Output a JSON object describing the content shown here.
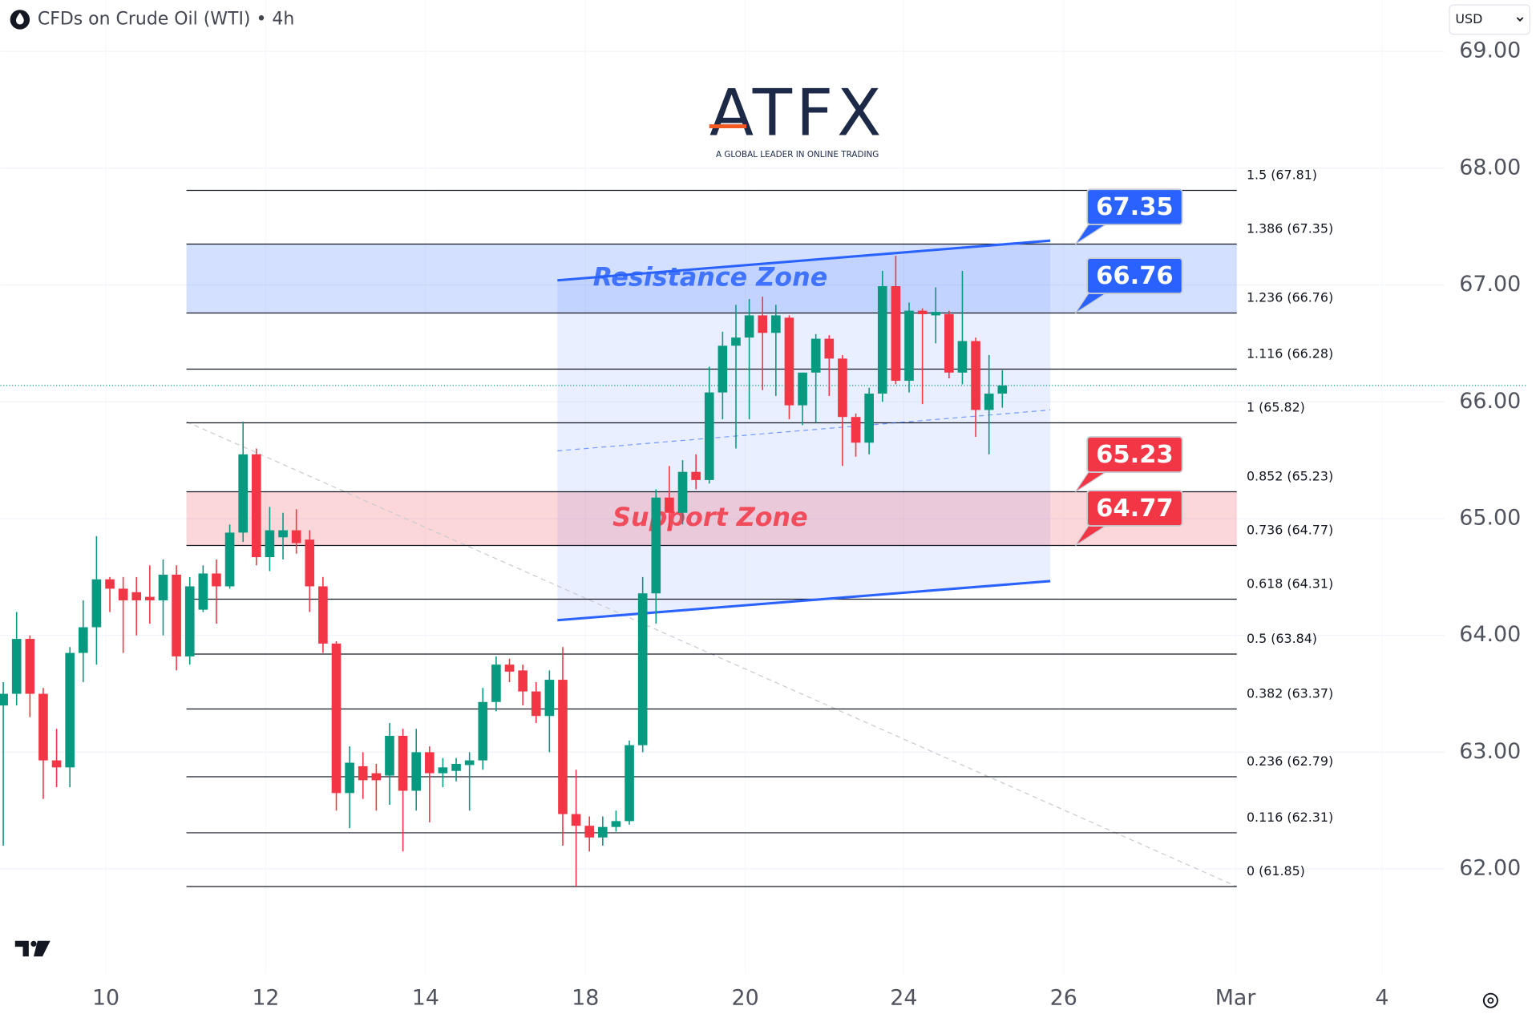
{
  "header": {
    "symbol": "CFDs on Crude Oil (WTI) • 4h",
    "currency": "USD"
  },
  "logo": {
    "name": "ATFX",
    "tagline": "A GLOBAL LEADER IN ONLINE TRADING"
  },
  "chart_data": {
    "type": "candlestick",
    "xlim": [
      -0.22,
      108.2
    ],
    "xticks": [
      {
        "value": 7.7,
        "label": "10"
      },
      {
        "value": 19.7,
        "label": "12"
      },
      {
        "value": 31.7,
        "label": "14"
      },
      {
        "value": 43.7,
        "label": "18"
      },
      {
        "value": 55.7,
        "label": "20"
      },
      {
        "value": 67.6,
        "label": "24"
      },
      {
        "value": 79.6,
        "label": "26"
      },
      {
        "value": 92.5,
        "label": "Mar"
      },
      {
        "value": 103.5,
        "label": "4"
      }
    ],
    "ylim": [
      61.1,
      69.44
    ],
    "yticks": [
      {
        "value": 62,
        "label": "62.00"
      },
      {
        "value": 63,
        "label": "63.00"
      },
      {
        "value": 64,
        "label": "64.00"
      },
      {
        "value": 65,
        "label": "65.00"
      },
      {
        "value": 66,
        "label": "66.00"
      },
      {
        "value": 67,
        "label": "67.00"
      },
      {
        "value": 68,
        "label": "68.00"
      },
      {
        "value": 69,
        "label": "69.00"
      }
    ],
    "grid": true,
    "up_color": "#089981",
    "down_color": "#f23645",
    "x": [
      0,
      1,
      2,
      3,
      4,
      5,
      6,
      7,
      8,
      9,
      10,
      11,
      12,
      13,
      14,
      15,
      16,
      17,
      18,
      19,
      20,
      21,
      22,
      23,
      24,
      25,
      26,
      27,
      28,
      29,
      30,
      31,
      32,
      33,
      34,
      35,
      36,
      37,
      38,
      39,
      40,
      41,
      42,
      43,
      44,
      45,
      46,
      47,
      48,
      49,
      50,
      51,
      52,
      53,
      54,
      55,
      56,
      57,
      58,
      59,
      60,
      61,
      62,
      63,
      64,
      65,
      66,
      67,
      68,
      69,
      70,
      71,
      72,
      73,
      74,
      75
    ],
    "open": [
      63.4,
      63.5,
      63.97,
      63.5,
      62.93,
      62.87,
      63.85,
      64.07,
      64.48,
      64.4,
      64.37,
      64.33,
      64.3,
      64.52,
      63.82,
      64.22,
      64.53,
      64.42,
      64.88,
      65.55,
      64.67,
      64.84,
      64.9,
      64.82,
      64.42,
      63.93,
      62.65,
      62.88,
      62.82,
      62.8,
      63.14,
      62.67,
      63.0,
      62.82,
      62.84,
      62.89,
      62.93,
      63.43,
      63.75,
      63.7,
      63.52,
      63.31,
      63.62,
      62.47,
      62.37,
      62.27,
      62.36,
      62.41,
      63.06,
      64.36,
      65.18,
      65.05,
      65.4,
      65.33,
      66.08,
      66.48,
      66.55,
      66.74,
      66.59,
      66.72,
      65.97,
      66.25,
      66.54,
      66.37,
      65.87,
      65.65,
      66.07,
      66.99,
      66.18,
      66.78,
      66.74,
      66.75,
      66.25,
      66.52,
      65.93,
      66.07
    ],
    "high": [
      63.6,
      64.2,
      64.0,
      63.55,
      63.2,
      63.9,
      64.3,
      64.85,
      64.5,
      64.5,
      64.5,
      64.6,
      64.65,
      64.6,
      64.5,
      64.6,
      64.65,
      64.95,
      65.83,
      65.6,
      65.1,
      65.05,
      65.08,
      64.9,
      64.5,
      63.95,
      63.05,
      63.0,
      62.9,
      63.25,
      63.2,
      63.2,
      63.05,
      62.95,
      62.95,
      63.0,
      63.55,
      63.82,
      63.8,
      63.75,
      63.6,
      63.7,
      63.9,
      62.85,
      62.45,
      62.45,
      62.5,
      63.1,
      64.5,
      65.25,
      65.45,
      65.5,
      65.55,
      66.3,
      66.6,
      66.83,
      66.88,
      66.9,
      66.83,
      66.74,
      66.25,
      66.58,
      66.57,
      66.4,
      65.9,
      66.12,
      67.12,
      67.25,
      66.85,
      66.8,
      66.98,
      66.78,
      67.12,
      66.55,
      66.4,
      66.27
    ],
    "low": [
      62.2,
      63.4,
      63.3,
      62.6,
      62.7,
      62.7,
      63.6,
      63.75,
      64.2,
      63.85,
      64.0,
      64.1,
      64.0,
      63.7,
      63.75,
      64.2,
      64.1,
      64.4,
      64.8,
      64.6,
      64.55,
      64.65,
      64.7,
      64.2,
      63.85,
      62.5,
      62.35,
      62.6,
      62.5,
      62.55,
      62.15,
      62.5,
      62.4,
      62.7,
      62.75,
      62.5,
      62.85,
      63.35,
      63.6,
      63.4,
      63.25,
      63.0,
      62.2,
      61.85,
      62.15,
      62.2,
      62.32,
      62.38,
      63.0,
      64.1,
      64.9,
      64.95,
      65.25,
      65.3,
      65.85,
      65.6,
      65.85,
      66.1,
      66.05,
      65.85,
      65.8,
      65.82,
      66.05,
      65.45,
      65.53,
      65.55,
      66.0,
      66.15,
      66.08,
      65.98,
      66.5,
      66.2,
      66.15,
      65.7,
      65.55,
      65.95
    ],
    "close": [
      63.5,
      63.97,
      63.5,
      62.93,
      62.87,
      63.85,
      64.07,
      64.48,
      64.4,
      64.3,
      64.3,
      64.3,
      64.52,
      63.82,
      64.42,
      64.53,
      64.42,
      64.88,
      65.55,
      64.67,
      64.9,
      64.9,
      64.79,
      64.42,
      63.93,
      62.65,
      62.91,
      62.76,
      62.76,
      63.14,
      62.67,
      63.0,
      62.82,
      62.87,
      62.9,
      62.93,
      63.43,
      63.75,
      63.69,
      63.52,
      63.31,
      63.62,
      62.47,
      62.37,
      62.27,
      62.36,
      62.41,
      63.06,
      64.36,
      65.18,
      65.05,
      65.4,
      65.33,
      66.08,
      66.48,
      66.55,
      66.74,
      66.59,
      66.74,
      65.97,
      66.25,
      66.54,
      66.37,
      65.87,
      65.65,
      66.07,
      66.99,
      66.18,
      66.78,
      66.75,
      66.77,
      66.25,
      66.52,
      65.93,
      66.07,
      66.14
    ],
    "fib_range": [
      13.75,
      92.6
    ],
    "fib_levels": [
      {
        "value": 67.81,
        "label": "1.5 (67.81)"
      },
      {
        "value": 67.35,
        "label": "1.386 (67.35)"
      },
      {
        "value": 66.76,
        "label": "1.236 (66.76)"
      },
      {
        "value": 66.28,
        "label": "1.116 (66.28)"
      },
      {
        "value": 65.82,
        "label": "1 (65.82)"
      },
      {
        "value": 65.23,
        "label": "0.852 (65.23)"
      },
      {
        "value": 64.77,
        "label": "0.736 (64.77)"
      },
      {
        "value": 64.31,
        "label": "0.618 (64.31)"
      },
      {
        "value": 63.84,
        "label": "0.5 (63.84)"
      },
      {
        "value": 63.37,
        "label": "0.382 (63.37)"
      },
      {
        "value": 62.79,
        "label": "0.236 (62.79)"
      },
      {
        "value": 62.31,
        "label": "0.116 (62.31)"
      },
      {
        "value": 61.85,
        "label": "0 (61.85)"
      }
    ],
    "zones": [
      {
        "name": "Resistance Zone",
        "low": 66.76,
        "high": 67.35,
        "color": "#2962ff"
      },
      {
        "name": "Support Zone",
        "low": 64.77,
        "high": 65.23,
        "color": "#f23645"
      }
    ],
    "price_tags": [
      {
        "value": 67.35,
        "color": "#2962ff"
      },
      {
        "value": 66.76,
        "color": "#2962ff"
      },
      {
        "value": 65.23,
        "color": "#f23645"
      },
      {
        "value": 64.77,
        "color": "#f23645"
      }
    ],
    "channel": {
      "color": "#2962ff",
      "upper": {
        "x": [
          41.6,
          78.6
        ],
        "y": [
          67.04,
          67.38
        ]
      },
      "lower": {
        "x": [
          41.6,
          78.6
        ],
        "y": [
          64.13,
          64.465
        ]
      },
      "mid": {
        "x": [
          41.6,
          78.6
        ],
        "y": [
          65.58,
          65.93
        ]
      }
    },
    "trendline": {
      "x": [
        13.75,
        92.6
      ],
      "y": [
        65.83,
        61.85
      ]
    },
    "last_price": 66.14
  }
}
